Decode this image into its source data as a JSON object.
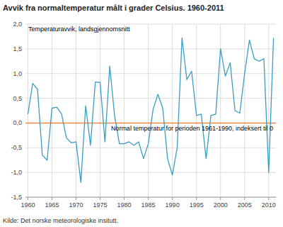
{
  "chart_data": {
    "type": "line",
    "title": "Avvik fra normaltemperatur målt i grader Celsius. 1960-2011",
    "annotations": [
      "Temperaturavvik, landsgjennomsnitt",
      "Normal temperatur for perioden 1961-1990, indeksert til 0",
      "Kilde: Det norske meteorologiske insitutt."
    ],
    "x": [
      1960,
      1961,
      1962,
      1963,
      1964,
      1965,
      1966,
      1967,
      1968,
      1969,
      1970,
      1971,
      1972,
      1973,
      1974,
      1975,
      1976,
      1977,
      1978,
      1979,
      1980,
      1981,
      1982,
      1983,
      1984,
      1985,
      1986,
      1987,
      1988,
      1989,
      1990,
      1991,
      1992,
      1993,
      1994,
      1995,
      1996,
      1997,
      1998,
      1999,
      2000,
      2001,
      2002,
      2003,
      2004,
      2005,
      2006,
      2007,
      2008,
      2009,
      2010,
      2011
    ],
    "values": [
      0.18,
      0.8,
      0.68,
      -0.65,
      -0.75,
      0.3,
      0.32,
      0.18,
      -0.3,
      -0.4,
      -0.38,
      -1.2,
      0.35,
      -0.45,
      0.83,
      0.82,
      -0.38,
      1.15,
      0.15,
      -0.42,
      -0.42,
      -0.38,
      -0.45,
      -0.38,
      -0.72,
      -0.42,
      0.28,
      0.58,
      0.3,
      -0.72,
      -1.05,
      -0.5,
      1.72,
      0.88,
      1.05,
      0.15,
      0.18,
      -0.72,
      0.15,
      0.18,
      1.5,
      0.95,
      1.22,
      0.25,
      0.2,
      1.0,
      1.68,
      1.3,
      1.25,
      1.3,
      -1.0,
      1.72
    ],
    "color": "#3a9ec2",
    "reference_line": {
      "value": 0.0,
      "color": "#f4883c"
    },
    "xlim": [
      1959.5,
      2011.5
    ],
    "xticks": [
      1960,
      1965,
      1970,
      1975,
      1980,
      1985,
      1990,
      1995,
      2000,
      2005,
      2010
    ],
    "ylim": [
      -1.5,
      2.0
    ],
    "yticks": [
      {
        "value": -1.5,
        "label": "-1,5"
      },
      {
        "value": -1.0,
        "label": "-1,0"
      },
      {
        "value": -0.5,
        "label": "-0,5"
      },
      {
        "value": 0.0,
        "label": "0,0"
      },
      {
        "value": 0.5,
        "label": "0,5"
      },
      {
        "value": 1.0,
        "label": "1,0"
      },
      {
        "value": 1.5,
        "label": "1,5"
      },
      {
        "value": 2.0,
        "label": "2,0"
      }
    ],
    "grid": true
  }
}
